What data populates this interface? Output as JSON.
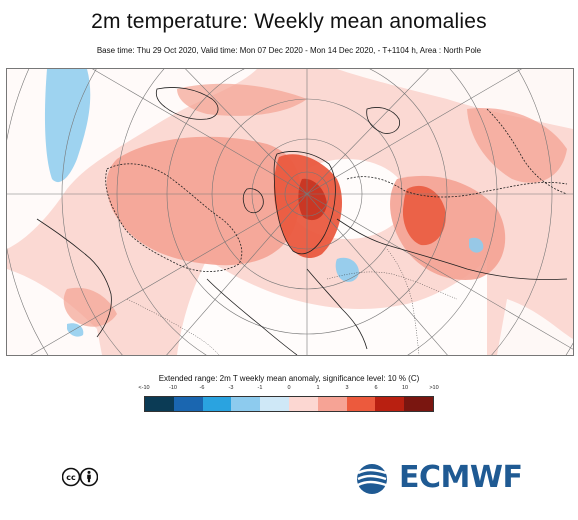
{
  "figure": {
    "title": "2m temperature: Weekly mean anomalies",
    "subtitle": "Base time: Thu 29 Oct 2020, Valid time: Mon 07 Dec 2020 - Mon 14 Dec 2020, - T+1104 h, Area : North Pole"
  },
  "map": {
    "projection": "polar stereographic",
    "area": "North Pole",
    "variable": "2m T weekly mean anomaly",
    "units": "C"
  },
  "legend": {
    "title": "Extended range: 2m T weekly mean anomaly, significance level: 10 % (C)",
    "tick_labels": [
      "<-10",
      "-10",
      "-6",
      "-3",
      "-1",
      "0",
      "1",
      "3",
      "6",
      "10",
      ">10"
    ],
    "colors": [
      "#0b3b55",
      "#1a66b0",
      "#2aa3e0",
      "#8dcbee",
      "#cfe8f7",
      "#fcd7d2",
      "#f6a395",
      "#ec5a3d",
      "#b92011",
      "#7a1610"
    ]
  },
  "logos": {
    "license": "cc-by",
    "org": "ECMWF"
  }
}
